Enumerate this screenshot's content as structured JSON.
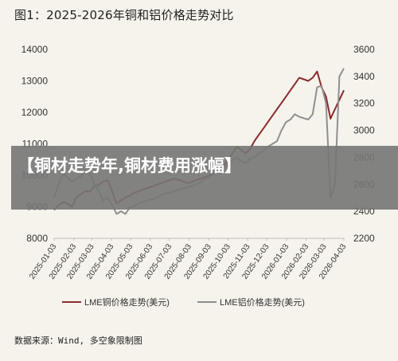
{
  "figure": {
    "title": "图1：2025-2026年铜和铝价格走势对比",
    "source": "数据来源：Wind, 多空象限制图"
  },
  "banner": {
    "headline": "【铜材走势年,铜材费用涨幅】"
  },
  "colors": {
    "copper": "#8b2a2e",
    "aluminum": "#8f8f8f",
    "banner_bg": "#767676",
    "background": "#f6f3ec"
  },
  "chart_data": {
    "type": "line",
    "x": [
      "2025-01-03",
      "2025-01-10",
      "2025-01-17",
      "2025-01-24",
      "2025-01-31",
      "2025-02-07",
      "2025-02-14",
      "2025-02-21",
      "2025-02-28",
      "2025-03-07",
      "2025-03-14",
      "2025-03-21",
      "2025-03-28",
      "2025-04-04",
      "2025-04-11",
      "2025-04-18",
      "2025-04-25",
      "2025-05-02",
      "2025-05-09",
      "2025-05-16",
      "2025-05-23",
      "2025-05-30",
      "2025-06-06",
      "2025-06-13",
      "2025-06-20",
      "2025-06-27",
      "2025-07-04",
      "2025-07-11",
      "2025-07-18",
      "2025-07-25",
      "2025-08-01",
      "2025-08-08",
      "2025-08-15",
      "2025-08-22",
      "2025-08-29",
      "2025-09-05",
      "2025-09-12",
      "2025-09-19",
      "2025-09-26",
      "2025-10-03",
      "2025-10-10",
      "2025-10-17",
      "2025-10-24",
      "2025-10-31",
      "2025-11-07",
      "2025-11-14",
      "2025-11-21",
      "2025-11-28",
      "2025-12-05",
      "2025-12-12",
      "2025-12-19",
      "2025-12-26",
      "2026-01-02",
      "2026-01-09",
      "2026-01-16",
      "2026-01-23",
      "2026-01-30",
      "2026-02-06",
      "2026-02-13",
      "2026-02-20",
      "2026-02-27",
      "2026-03-06",
      "2026-03-13",
      "2026-03-20",
      "2026-03-27",
      "2026-04-03"
    ],
    "x_tick_labels": [
      "2025-01-03",
      "2025-02-03",
      "2025-03-03",
      "2025-04-03",
      "2025-05-03",
      "2025-06-03",
      "2025-07-03",
      "2025-08-03",
      "2025-09-03",
      "2025-10-03",
      "2025-11-03",
      "2025-12-03",
      "2026-01-03",
      "2026-02-03",
      "2026-03-03",
      "2026-04-03"
    ],
    "y_left": {
      "ylim": [
        8000,
        14000
      ],
      "ticks": [
        "8000",
        "9000",
        "10000",
        "11000",
        "12000",
        "13000",
        "14000"
      ]
    },
    "y_right": {
      "ylim": [
        2200,
        3600
      ],
      "ticks": [
        "2200",
        "2400",
        "2600",
        "2800",
        "3000",
        "3200",
        "3400",
        "3600"
      ]
    },
    "series": [
      {
        "name": "LME铜价格走势(美元)",
        "axis": "left",
        "color": "#8b2a2e",
        "values": [
          8900,
          9050,
          9150,
          9100,
          9000,
          9300,
          9400,
          9500,
          9480,
          9650,
          9700,
          9800,
          9850,
          9500,
          9100,
          9200,
          9300,
          9350,
          9450,
          9500,
          9550,
          9600,
          9650,
          9700,
          9750,
          9800,
          9850,
          9900,
          9850,
          9800,
          9750,
          9800,
          9850,
          9900,
          9950,
          10000,
          10100,
          10200,
          10300,
          10500,
          10700,
          10900,
          10800,
          10700,
          10850,
          11100,
          11300,
          11500,
          11700,
          11900,
          12100,
          12300,
          12500,
          12700,
          12900,
          13100,
          13050,
          13000,
          13100,
          13300,
          12800,
          12500,
          11800,
          12100,
          12400,
          12700
        ]
      },
      {
        "name": "LME铝价格走势(美元)",
        "axis": "right",
        "color": "#8f8f8f",
        "values": [
          2500,
          2600,
          2680,
          2650,
          2620,
          2640,
          2660,
          2700,
          2680,
          2600,
          2550,
          2480,
          2500,
          2450,
          2380,
          2400,
          2380,
          2430,
          2440,
          2460,
          2470,
          2480,
          2490,
          2500,
          2520,
          2530,
          2540,
          2550,
          2560,
          2570,
          2580,
          2590,
          2600,
          2620,
          2640,
          2660,
          2680,
          2700,
          2720,
          2760,
          2780,
          2800,
          2770,
          2760,
          2790,
          2800,
          2830,
          2850,
          2880,
          2900,
          2920,
          3000,
          3060,
          3080,
          3120,
          3100,
          3090,
          3080,
          3120,
          3320,
          3330,
          3200,
          2500,
          2600,
          3400,
          3460
        ]
      }
    ],
    "legend": "bottom-center",
    "grid": false
  }
}
